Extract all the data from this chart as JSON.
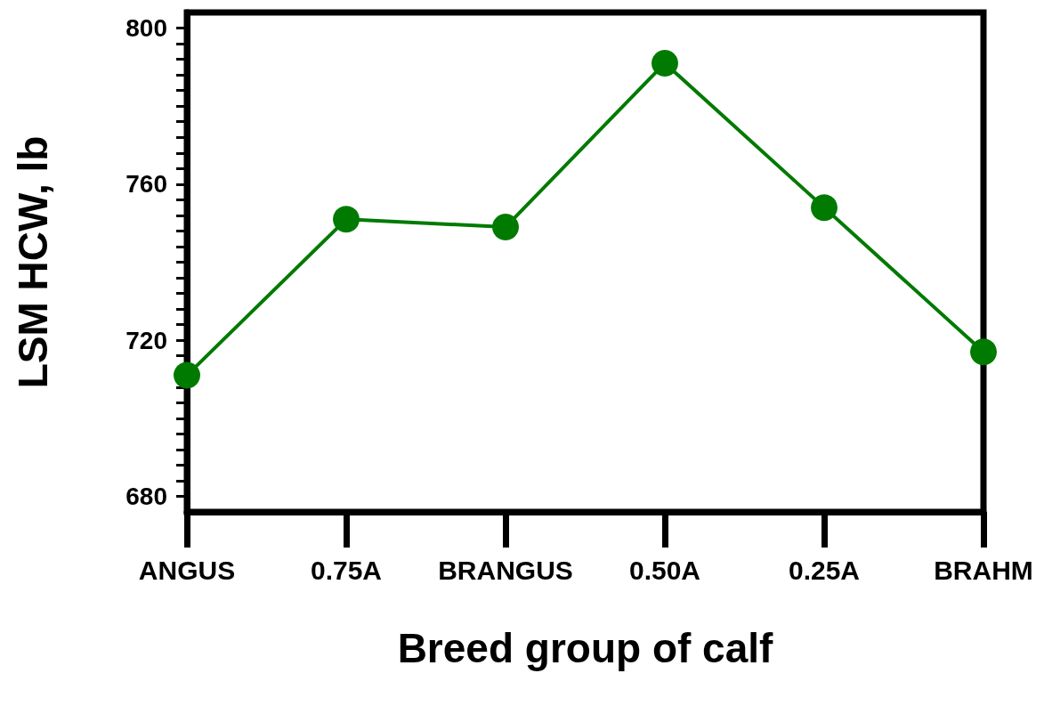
{
  "chart_data": {
    "type": "line",
    "xlabel": "Breed group of calf",
    "ylabel": "LSM HCW, lb",
    "categories": [
      "ANGUS",
      "0.75A",
      "BRANGUS",
      "0.50A",
      "0.25A",
      "BRAHM"
    ],
    "series": [
      {
        "color": "#007a00",
        "values": [
          711,
          751,
          749,
          791,
          754,
          717
        ]
      }
    ],
    "marker": "circle",
    "line_style": "solid",
    "grid": false,
    "ylim": [
      676,
      804
    ],
    "yticks": [
      680,
      {
        "value": 684,
        "label": null
      },
      {
        "value": 688,
        "label": null
      },
      {
        "value": 692,
        "label": null
      },
      {
        "value": 696,
        "label": null
      },
      {
        "value": 700,
        "label": null
      },
      {
        "value": 704,
        "label": null
      },
      {
        "value": 708,
        "label": null
      },
      {
        "value": 712,
        "label": null
      },
      {
        "value": 716,
        "label": null
      },
      720,
      {
        "value": 724,
        "label": null
      },
      {
        "value": 728,
        "label": null
      },
      {
        "value": 732,
        "label": null
      },
      {
        "value": 736,
        "label": null
      },
      {
        "value": 740,
        "label": null
      },
      {
        "value": 744,
        "label": null
      },
      {
        "value": 748,
        "label": null
      },
      {
        "value": 752,
        "label": null
      },
      {
        "value": 756,
        "label": null
      },
      760,
      {
        "value": 764,
        "label": null
      },
      {
        "value": 768,
        "label": null
      },
      {
        "value": 772,
        "label": null
      },
      {
        "value": 776,
        "label": null
      },
      {
        "value": 780,
        "label": null
      },
      {
        "value": 784,
        "label": null
      },
      {
        "value": 788,
        "label": null
      },
      {
        "value": 792,
        "label": null
      },
      {
        "value": 796,
        "label": null
      },
      800
    ]
  }
}
